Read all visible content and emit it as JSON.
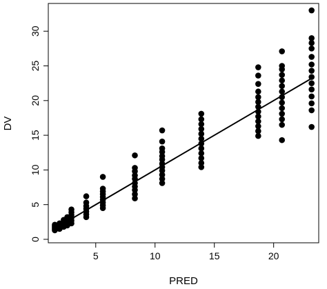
{
  "chart_data": {
    "type": "scatter",
    "title": "",
    "xlabel": "PRED",
    "ylabel": "DV",
    "xlim": [
      1.0,
      23.8
    ],
    "ylim": [
      -0.5,
      34.0
    ],
    "xticks": [
      5,
      10,
      15,
      20
    ],
    "yticks": [
      0,
      5,
      10,
      15,
      20,
      25,
      30
    ],
    "grid": false,
    "point_color": "#000000",
    "line_color": "#000000",
    "fit_line": {
      "x": [
        1.5,
        23.2
      ],
      "y": [
        1.5,
        23.2
      ]
    },
    "points": [
      {
        "x": 1.55,
        "y": 1.3
      },
      {
        "x": 1.55,
        "y": 1.5
      },
      {
        "x": 1.55,
        "y": 1.7
      },
      {
        "x": 1.55,
        "y": 1.9
      },
      {
        "x": 1.55,
        "y": 2.1
      },
      {
        "x": 1.95,
        "y": 1.5
      },
      {
        "x": 1.95,
        "y": 1.8
      },
      {
        "x": 1.95,
        "y": 2.0
      },
      {
        "x": 1.95,
        "y": 2.3
      },
      {
        "x": 2.3,
        "y": 1.8
      },
      {
        "x": 2.3,
        "y": 2.1
      },
      {
        "x": 2.3,
        "y": 2.5
      },
      {
        "x": 2.3,
        "y": 2.8
      },
      {
        "x": 2.6,
        "y": 2.0
      },
      {
        "x": 2.6,
        "y": 2.4
      },
      {
        "x": 2.6,
        "y": 2.8
      },
      {
        "x": 2.6,
        "y": 3.2
      },
      {
        "x": 2.95,
        "y": 2.3
      },
      {
        "x": 2.95,
        "y": 2.7
      },
      {
        "x": 2.95,
        "y": 3.1
      },
      {
        "x": 2.95,
        "y": 3.5
      },
      {
        "x": 2.95,
        "y": 3.9
      },
      {
        "x": 2.95,
        "y": 4.3
      },
      {
        "x": 4.2,
        "y": 3.2
      },
      {
        "x": 4.2,
        "y": 3.6
      },
      {
        "x": 4.2,
        "y": 4.0
      },
      {
        "x": 4.2,
        "y": 4.4
      },
      {
        "x": 4.2,
        "y": 4.8
      },
      {
        "x": 4.2,
        "y": 5.3
      },
      {
        "x": 4.2,
        "y": 6.2
      },
      {
        "x": 5.6,
        "y": 4.5
      },
      {
        "x": 5.6,
        "y": 4.9
      },
      {
        "x": 5.6,
        "y": 5.3
      },
      {
        "x": 5.6,
        "y": 5.7
      },
      {
        "x": 5.6,
        "y": 6.1
      },
      {
        "x": 5.6,
        "y": 6.5
      },
      {
        "x": 5.6,
        "y": 6.9
      },
      {
        "x": 5.6,
        "y": 7.3
      },
      {
        "x": 5.6,
        "y": 9.0
      },
      {
        "x": 8.3,
        "y": 5.9
      },
      {
        "x": 8.3,
        "y": 6.5
      },
      {
        "x": 8.3,
        "y": 7.1
      },
      {
        "x": 8.3,
        "y": 7.6
      },
      {
        "x": 8.3,
        "y": 8.1
      },
      {
        "x": 8.3,
        "y": 8.7
      },
      {
        "x": 8.3,
        "y": 9.2
      },
      {
        "x": 8.3,
        "y": 9.8
      },
      {
        "x": 8.3,
        "y": 10.3
      },
      {
        "x": 8.3,
        "y": 12.1
      },
      {
        "x": 10.6,
        "y": 8.1
      },
      {
        "x": 10.6,
        "y": 8.7
      },
      {
        "x": 10.6,
        "y": 9.3
      },
      {
        "x": 10.6,
        "y": 9.9
      },
      {
        "x": 10.6,
        "y": 10.4
      },
      {
        "x": 10.6,
        "y": 10.9
      },
      {
        "x": 10.6,
        "y": 11.5
      },
      {
        "x": 10.6,
        "y": 12.0
      },
      {
        "x": 10.6,
        "y": 12.6
      },
      {
        "x": 10.6,
        "y": 13.1
      },
      {
        "x": 10.6,
        "y": 14.1
      },
      {
        "x": 10.6,
        "y": 15.7
      },
      {
        "x": 13.9,
        "y": 10.4
      },
      {
        "x": 13.9,
        "y": 11.0
      },
      {
        "x": 13.9,
        "y": 11.7
      },
      {
        "x": 13.9,
        "y": 12.4
      },
      {
        "x": 13.9,
        "y": 13.1
      },
      {
        "x": 13.9,
        "y": 13.8
      },
      {
        "x": 13.9,
        "y": 14.5
      },
      {
        "x": 13.9,
        "y": 15.2
      },
      {
        "x": 13.9,
        "y": 15.9
      },
      {
        "x": 13.9,
        "y": 16.6
      },
      {
        "x": 13.9,
        "y": 17.3
      },
      {
        "x": 13.9,
        "y": 18.1
      },
      {
        "x": 18.7,
        "y": 14.9
      },
      {
        "x": 18.7,
        "y": 15.6
      },
      {
        "x": 18.7,
        "y": 16.3
      },
      {
        "x": 18.7,
        "y": 17.0
      },
      {
        "x": 18.7,
        "y": 17.7
      },
      {
        "x": 18.7,
        "y": 18.4
      },
      {
        "x": 18.7,
        "y": 19.1
      },
      {
        "x": 18.7,
        "y": 19.8
      },
      {
        "x": 18.7,
        "y": 20.5
      },
      {
        "x": 18.7,
        "y": 21.3
      },
      {
        "x": 18.7,
        "y": 22.4
      },
      {
        "x": 18.7,
        "y": 23.6
      },
      {
        "x": 18.7,
        "y": 24.8
      },
      {
        "x": 20.7,
        "y": 14.3
      },
      {
        "x": 20.7,
        "y": 16.5
      },
      {
        "x": 20.7,
        "y": 17.3
      },
      {
        "x": 20.7,
        "y": 18.1
      },
      {
        "x": 20.7,
        "y": 18.9
      },
      {
        "x": 20.7,
        "y": 19.7
      },
      {
        "x": 20.7,
        "y": 20.5
      },
      {
        "x": 20.7,
        "y": 21.3
      },
      {
        "x": 20.7,
        "y": 22.1
      },
      {
        "x": 20.7,
        "y": 22.9
      },
      {
        "x": 20.7,
        "y": 23.7
      },
      {
        "x": 20.7,
        "y": 24.5
      },
      {
        "x": 20.7,
        "y": 25.0
      },
      {
        "x": 20.7,
        "y": 27.1
      },
      {
        "x": 23.2,
        "y": 16.2
      },
      {
        "x": 23.2,
        "y": 18.6
      },
      {
        "x": 23.2,
        "y": 19.6
      },
      {
        "x": 23.2,
        "y": 20.6
      },
      {
        "x": 23.2,
        "y": 21.6
      },
      {
        "x": 23.2,
        "y": 22.5
      },
      {
        "x": 23.2,
        "y": 23.4
      },
      {
        "x": 23.2,
        "y": 24.3
      },
      {
        "x": 23.2,
        "y": 25.2
      },
      {
        "x": 23.2,
        "y": 26.3
      },
      {
        "x": 23.2,
        "y": 27.5
      },
      {
        "x": 23.2,
        "y": 28.3
      },
      {
        "x": 23.2,
        "y": 29.0
      },
      {
        "x": 23.2,
        "y": 33.0
      }
    ]
  }
}
